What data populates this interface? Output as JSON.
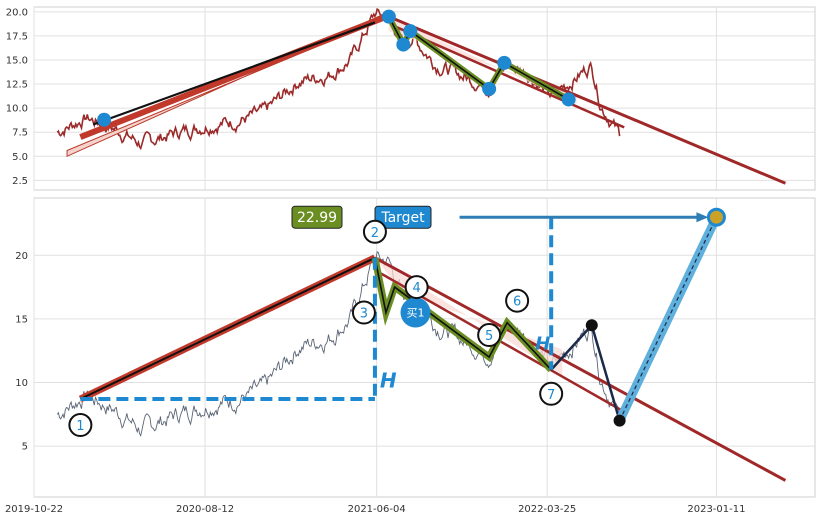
{
  "chart_data": [
    {
      "type": "line",
      "name": "top-panel",
      "title": "",
      "xlabel": "",
      "ylabel": "",
      "ylim": [
        1.5,
        20.5
      ],
      "yticks": [
        2.5,
        5.0,
        7.5,
        10.0,
        12.5,
        15.0,
        17.5,
        20.0
      ],
      "ytick_labels": [
        "2.5",
        "5.0",
        "7.5",
        "10.0",
        "12.5",
        "15.0",
        "17.5",
        "20.0"
      ],
      "grid": true,
      "pivots": [
        {
          "date": "2020-02-20",
          "value": 8.8
        },
        {
          "date": "2021-06-25",
          "value": 19.5
        },
        {
          "date": "2021-07-20",
          "value": 16.6
        },
        {
          "date": "2021-08-01",
          "value": 18.0
        },
        {
          "date": "2021-12-15",
          "value": 12.0
        },
        {
          "date": "2022-01-10",
          "value": 14.7
        },
        {
          "date": "2022-05-01",
          "value": 10.9
        }
      ]
    },
    {
      "type": "line",
      "name": "bottom-panel",
      "title": "",
      "xlabel": "",
      "ylabel": "",
      "ylim": [
        1.0,
        24.5
      ],
      "yticks": [
        5,
        10,
        15,
        20
      ],
      "ytick_labels": [
        "5",
        "10",
        "15",
        "20"
      ],
      "xlim": [
        "2019-10-22",
        "2023-06-30"
      ],
      "xticks": [
        "2019-10-22",
        "2020-08-12",
        "2021-06-04",
        "2022-03-25",
        "2023-01-11"
      ],
      "grid": true,
      "wave_points": [
        {
          "label": "1",
          "date": "2020-01-10",
          "value": 8.7
        },
        {
          "label": "2",
          "date": "2021-06-01",
          "value": 19.8
        },
        {
          "label": "3",
          "date": "2021-06-20",
          "value": 15.5
        },
        {
          "label": "4",
          "date": "2021-07-05",
          "value": 17.5
        },
        {
          "label": "5",
          "date": "2021-12-15",
          "value": 12.0
        },
        {
          "label": "6",
          "date": "2022-01-15",
          "value": 14.7
        },
        {
          "label": "7",
          "date": "2022-04-01",
          "value": 11.0
        }
      ],
      "projection": [
        {
          "date": "2022-04-01",
          "value": 11.0
        },
        {
          "date": "2022-06-10",
          "value": 14.5
        },
        {
          "date": "2022-07-28",
          "value": 7.0
        },
        {
          "date": "2023-01-11",
          "value": 22.99
        }
      ],
      "buy_point": {
        "label": "买1",
        "date": "2021-08-10",
        "value": 15.5
      },
      "price_box": "22.99",
      "target_box": "Target",
      "h_label": "H",
      "h2_label": "H"
    }
  ],
  "colors": {
    "accent_blue": "#1E88D0",
    "price_top": "#9B2A2A",
    "price_bottom": "#5A6475",
    "trend_red": "#A02828",
    "wave_green": "#6B8E23",
    "price_box_bg": "#6B8E23",
    "target_box_bg": "#1E88D0"
  }
}
